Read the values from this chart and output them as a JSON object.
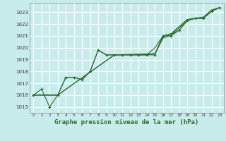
{
  "title": "Graphe pression niveau de la mer (hPa)",
  "bg_color": "#c8ecec",
  "grid_color": "#ffffff",
  "line_color": "#2d6a2d",
  "xlim": [
    -0.5,
    23.5
  ],
  "ylim": [
    1014.5,
    1023.8
  ],
  "xticks": [
    0,
    1,
    2,
    3,
    4,
    5,
    6,
    7,
    8,
    9,
    10,
    11,
    12,
    13,
    14,
    15,
    16,
    17,
    18,
    19,
    20,
    21,
    22,
    23
  ],
  "yticks": [
    1015,
    1016,
    1017,
    1018,
    1019,
    1020,
    1021,
    1022,
    1023
  ],
  "series": [
    {
      "x": [
        0,
        1,
        2,
        3,
        4,
        5,
        6,
        7,
        8,
        9,
        10,
        11,
        12,
        13,
        14,
        15,
        16,
        17,
        18,
        19,
        20,
        21,
        22,
        23
      ],
      "y": [
        1016.0,
        1016.5,
        1015.0,
        1016.0,
        1017.5,
        1017.5,
        1017.3,
        1018.0,
        1019.8,
        1019.4,
        1019.4,
        1019.4,
        1019.4,
        1019.4,
        1019.4,
        1019.4,
        1021.0,
        1021.0,
        1021.5,
        1022.3,
        1022.5,
        1022.5,
        1023.1,
        1023.4
      ],
      "marker": "+",
      "lw": 0.8
    },
    {
      "x": [
        0,
        3,
        4,
        5,
        6,
        7,
        8,
        9,
        10,
        11,
        12,
        13,
        14,
        15,
        16,
        17,
        18,
        19,
        20,
        21,
        22,
        23
      ],
      "y": [
        1016.0,
        1016.0,
        1017.5,
        1017.5,
        1017.3,
        1018.0,
        1019.8,
        1019.4,
        1019.4,
        1019.4,
        1019.4,
        1019.4,
        1019.4,
        1020.0,
        1021.0,
        1021.1,
        1021.5,
        1022.3,
        1022.5,
        1022.5,
        1023.1,
        1023.4
      ],
      "marker": null,
      "lw": 0.8
    },
    {
      "x": [
        0,
        3,
        10,
        11,
        12,
        13,
        14,
        15,
        16,
        17,
        18,
        19,
        20,
        21,
        22,
        23
      ],
      "y": [
        1016.0,
        1016.0,
        1019.4,
        1019.4,
        1019.4,
        1019.4,
        1019.4,
        1019.5,
        1020.8,
        1021.1,
        1021.7,
        1022.3,
        1022.5,
        1022.5,
        1023.1,
        1023.4
      ],
      "marker": null,
      "lw": 0.8
    },
    {
      "x": [
        0,
        3,
        10,
        15,
        16,
        17,
        18,
        19,
        20,
        21,
        22,
        23
      ],
      "y": [
        1016.0,
        1016.0,
        1019.4,
        1019.5,
        1021.0,
        1021.2,
        1021.8,
        1022.4,
        1022.5,
        1022.6,
        1023.2,
        1023.4
      ],
      "marker": null,
      "lw": 0.8
    }
  ]
}
